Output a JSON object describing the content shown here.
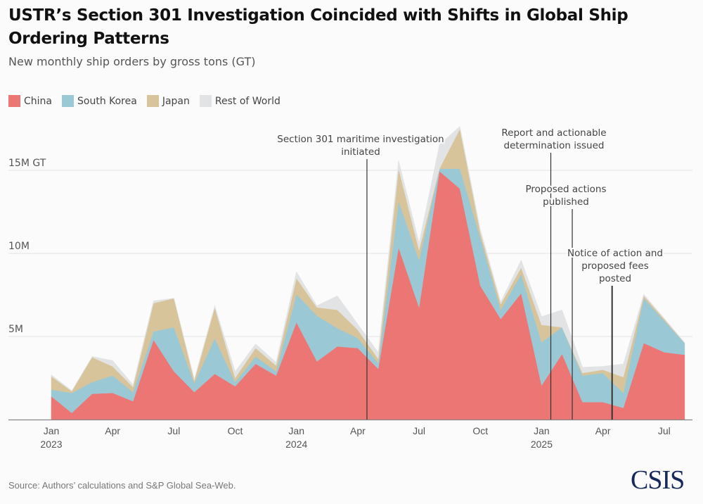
{
  "title": "USTR’s Section 301 Investigation Coincided with Shifts in Global Ship Ordering Patterns",
  "subtitle": "New monthly ship orders by gross tons (GT)",
  "source": "Source: Authors’ calculations and S&P Global Sea-Web.",
  "logo": "CSIS",
  "colors": {
    "China": "#ec7674",
    "South Korea": "#9bc8d5",
    "Japan": "#d8c49a",
    "Rest of World": "#e2e3e4",
    "gridline": "#e3e3e3",
    "baseline": "#888888",
    "annotation_line": "#333333"
  },
  "chart_data": {
    "type": "area",
    "stacked": true,
    "title": "USTR’s Section 301 Investigation Coincided with Shifts in Global Ship Ordering Patterns",
    "subtitle": "New monthly ship orders by gross tons (GT)",
    "xlabel": "",
    "ylabel": "",
    "units": "million GT",
    "ylim": [
      0,
      18
    ],
    "grid": true,
    "legend_position": "top-left",
    "y_ticks": [
      {
        "value": 5,
        "label": "5M"
      },
      {
        "value": 10,
        "label": "10M"
      },
      {
        "value": 15,
        "label": "15M GT"
      }
    ],
    "x": [
      "2023-01",
      "2023-02",
      "2023-03",
      "2023-04",
      "2023-05",
      "2023-06",
      "2023-07",
      "2023-08",
      "2023-09",
      "2023-10",
      "2023-11",
      "2023-12",
      "2024-01",
      "2024-02",
      "2024-03",
      "2024-04",
      "2024-05",
      "2024-06",
      "2024-07",
      "2024-08",
      "2024-09",
      "2024-10",
      "2024-11",
      "2024-12",
      "2025-01",
      "2025-02",
      "2025-03",
      "2025-04",
      "2025-05",
      "2025-06",
      "2025-07",
      "2025-08"
    ],
    "x_ticks": [
      {
        "index": 0,
        "label": "Jan",
        "sublabel": "2023"
      },
      {
        "index": 3,
        "label": "Apr",
        "sublabel": ""
      },
      {
        "index": 6,
        "label": "Jul",
        "sublabel": ""
      },
      {
        "index": 9,
        "label": "Oct",
        "sublabel": ""
      },
      {
        "index": 12,
        "label": "Jan",
        "sublabel": "2024"
      },
      {
        "index": 15,
        "label": "Apr",
        "sublabel": ""
      },
      {
        "index": 18,
        "label": "Jul",
        "sublabel": ""
      },
      {
        "index": 21,
        "label": "Oct",
        "sublabel": ""
      },
      {
        "index": 24,
        "label": "Jan",
        "sublabel": "2025"
      },
      {
        "index": 27,
        "label": "Apr",
        "sublabel": ""
      },
      {
        "index": 30,
        "label": "Jul",
        "sublabel": ""
      }
    ],
    "series": [
      {
        "name": "China",
        "values": [
          1.4,
          0.4,
          1.55,
          1.6,
          1.1,
          4.8,
          2.9,
          1.65,
          2.75,
          2.0,
          3.35,
          2.65,
          5.85,
          3.5,
          4.4,
          4.3,
          3.05,
          10.35,
          6.75,
          14.95,
          13.9,
          8.05,
          6.05,
          7.6,
          2.05,
          3.95,
          1.05,
          1.05,
          0.7,
          4.6,
          4.05,
          3.9
        ]
      },
      {
        "name": "South Korea",
        "values": [
          0.4,
          1.2,
          0.7,
          1.05,
          0.55,
          0.5,
          2.65,
          0.55,
          2.15,
          0.25,
          0.45,
          0.25,
          1.7,
          2.75,
          1.1,
          0.6,
          0.35,
          2.8,
          2.85,
          0.15,
          1.2,
          2.9,
          0.55,
          1.15,
          2.6,
          1.6,
          1.6,
          1.75,
          0.9,
          2.7,
          1.9,
          0.7
        ]
      },
      {
        "name": "Japan",
        "values": [
          0.8,
          0.1,
          1.5,
          0.55,
          0.3,
          1.7,
          1.75,
          0.15,
          1.85,
          0.25,
          0.5,
          0.35,
          0.95,
          0.5,
          1.1,
          0.5,
          0.25,
          1.95,
          0.6,
          0.0,
          2.4,
          0.3,
          0.35,
          0.4,
          1.05,
          0.0,
          0.15,
          0.2,
          0.95,
          0.15,
          0.1,
          0.0
        ]
      },
      {
        "name": "Rest of World",
        "values": [
          0.1,
          0.05,
          0.05,
          0.35,
          0.15,
          0.15,
          0.0,
          0.1,
          0.1,
          0.4,
          0.25,
          0.2,
          0.4,
          0.1,
          0.85,
          0.35,
          0.4,
          0.5,
          0.45,
          1.45,
          0.15,
          0.2,
          0.15,
          0.45,
          0.5,
          1.05,
          0.35,
          0.2,
          0.8,
          0.1,
          0.05,
          0.05
        ]
      }
    ],
    "annotations": [
      {
        "text": [
          "Section 301 maritime investigation",
          "initiated"
        ],
        "x_month": 15.45
      },
      {
        "text": [
          "Report and actionable",
          "determination issued"
        ],
        "x_month": 24.45
      },
      {
        "text": [
          "Proposed actions",
          "published"
        ],
        "x_month": 25.5
      },
      {
        "text": [
          "Notice of action and",
          "proposed fees",
          "posted"
        ],
        "x_month": 27.45
      }
    ]
  }
}
